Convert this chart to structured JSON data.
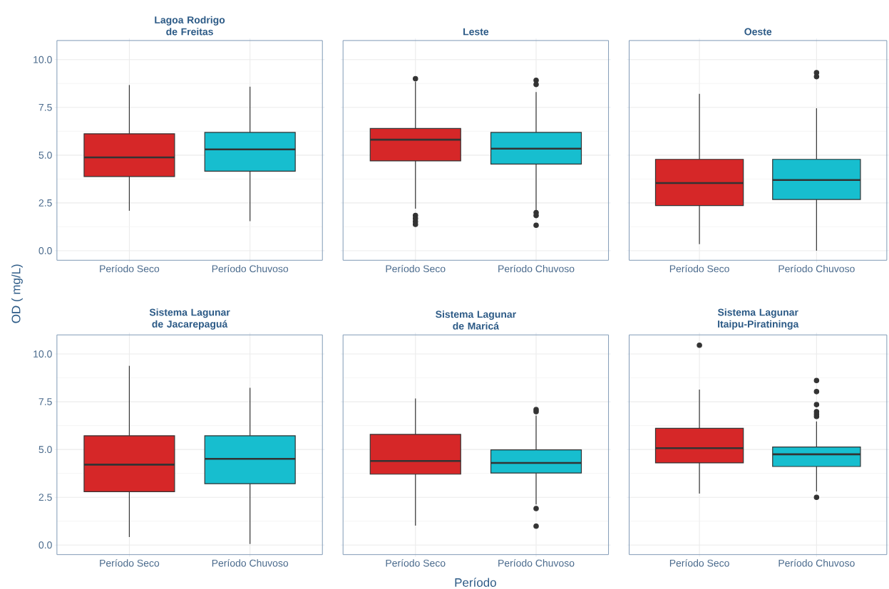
{
  "chart_data": [
    {
      "type": "box",
      "title": "Lagoa Rodrigo de Freitas",
      "ylabel": "OD ( mg/L)",
      "categories": [
        "Período Seco",
        "Período Chuvoso"
      ],
      "colors": [
        "#d62728",
        "#17becf"
      ],
      "ylim": [
        -0.5,
        11.0
      ],
      "yticks": [
        {
          "value": 0,
          "label": "0.0"
        },
        {
          "value": 2.5,
          "label": "2.5"
        },
        {
          "value": 5,
          "label": "5.0"
        },
        {
          "value": 7.5,
          "label": "7.5"
        },
        {
          "value": 10,
          "label": "10.0"
        }
      ],
      "grid": true,
      "boxes": [
        {
          "low": 2.09,
          "q1": 3.88,
          "median": 4.88,
          "q3": 6.12,
          "high": 8.67
        },
        {
          "low": 1.55,
          "q1": 4.16,
          "median": 5.3,
          "q3": 6.19,
          "high": 8.58
        }
      ]
    },
    {
      "type": "box",
      "title": "Leste",
      "categories": [
        "Período Seco",
        "Período Chuvoso"
      ],
      "colors": [
        "#d62728",
        "#17becf"
      ],
      "ylim": [
        -0.5,
        11.0
      ],
      "yticks": [
        0,
        2.5,
        5,
        7.5,
        10
      ],
      "grid": true,
      "tick_labels": "x",
      "boxes": [
        {
          "low": 2.2,
          "q1": 4.7,
          "median": 5.81,
          "q3": 6.4,
          "high": 8.85,
          "outliers": [
            9.0,
            1.84,
            1.69,
            1.53,
            1.38
          ]
        },
        {
          "low": 2.09,
          "q1": 4.53,
          "median": 5.34,
          "q3": 6.19,
          "high": 8.3,
          "outliers": [
            8.92,
            8.7,
            1.99,
            1.84,
            1.33
          ]
        }
      ]
    },
    {
      "type": "box",
      "title": "Oeste",
      "categories": [
        "Período Seco",
        "Período Chuvoso"
      ],
      "colors": [
        "#d62728",
        "#17becf"
      ],
      "ylim": [
        -0.5,
        11.0
      ],
      "yticks": [
        0,
        2.5,
        5,
        7.5,
        10
      ],
      "grid": true,
      "tick_labels": "x",
      "boxes": [
        {
          "low": 0.34,
          "q1": 2.36,
          "median": 3.54,
          "q3": 4.78,
          "high": 8.21
        },
        {
          "low": 0.0,
          "q1": 2.68,
          "median": 3.7,
          "q3": 4.78,
          "high": 7.45,
          "outliers": [
            9.32,
            9.11
          ]
        }
      ]
    },
    {
      "type": "box",
      "title": "Sistema Lagunar de Jacarepaguá",
      "categories": [
        "Período Seco",
        "Período Chuvoso"
      ],
      "colors": [
        "#d62728",
        "#17becf"
      ],
      "ylim": [
        -0.5,
        11.0
      ],
      "yticks": [
        {
          "value": 0,
          "label": "0.0"
        },
        {
          "value": 2.5,
          "label": "2.5"
        },
        {
          "value": 5,
          "label": "5.0"
        },
        {
          "value": 7.5,
          "label": "7.5"
        },
        {
          "value": 10,
          "label": "10.0"
        }
      ],
      "grid": true,
      "boxes": [
        {
          "low": 0.42,
          "q1": 2.79,
          "median": 4.21,
          "q3": 5.72,
          "high": 9.38
        },
        {
          "low": 0.06,
          "q1": 3.21,
          "median": 4.51,
          "q3": 5.72,
          "high": 8.23
        }
      ]
    },
    {
      "type": "box",
      "title": "Sistema Lagunar de Maricá",
      "xlabel": "Período",
      "categories": [
        "Período Seco",
        "Período Chuvoso"
      ],
      "colors": [
        "#d62728",
        "#17becf"
      ],
      "ylim": [
        -0.5,
        11.0
      ],
      "yticks": [
        0,
        2.5,
        5,
        7.5,
        10
      ],
      "grid": true,
      "tick_labels": "x",
      "boxes": [
        {
          "low": 1.02,
          "q1": 3.71,
          "median": 4.4,
          "q3": 5.79,
          "high": 7.67
        },
        {
          "low": 2.13,
          "q1": 3.77,
          "median": 4.3,
          "q3": 4.98,
          "high": 6.78,
          "outliers": [
            7.09,
            6.98,
            1.91,
            0.99
          ]
        }
      ]
    },
    {
      "type": "box",
      "title": "Sistema Lagunar Itaipu-Piratininga",
      "categories": [
        "Período Seco",
        "Período Chuvoso"
      ],
      "colors": [
        "#d62728",
        "#17becf"
      ],
      "ylim": [
        -0.5,
        11.0
      ],
      "yticks": [
        0,
        2.5,
        5,
        7.5,
        10
      ],
      "grid": true,
      "tick_labels": "x",
      "boxes": [
        {
          "low": 2.69,
          "q1": 4.3,
          "median": 5.07,
          "q3": 6.11,
          "high": 8.14,
          "outliers": [
            10.46
          ]
        },
        {
          "low": 2.81,
          "q1": 4.11,
          "median": 4.75,
          "q3": 5.13,
          "high": 6.47,
          "outliers": [
            8.61,
            8.03,
            7.35,
            6.98,
            6.85,
            6.73,
            2.5
          ]
        }
      ]
    }
  ]
}
